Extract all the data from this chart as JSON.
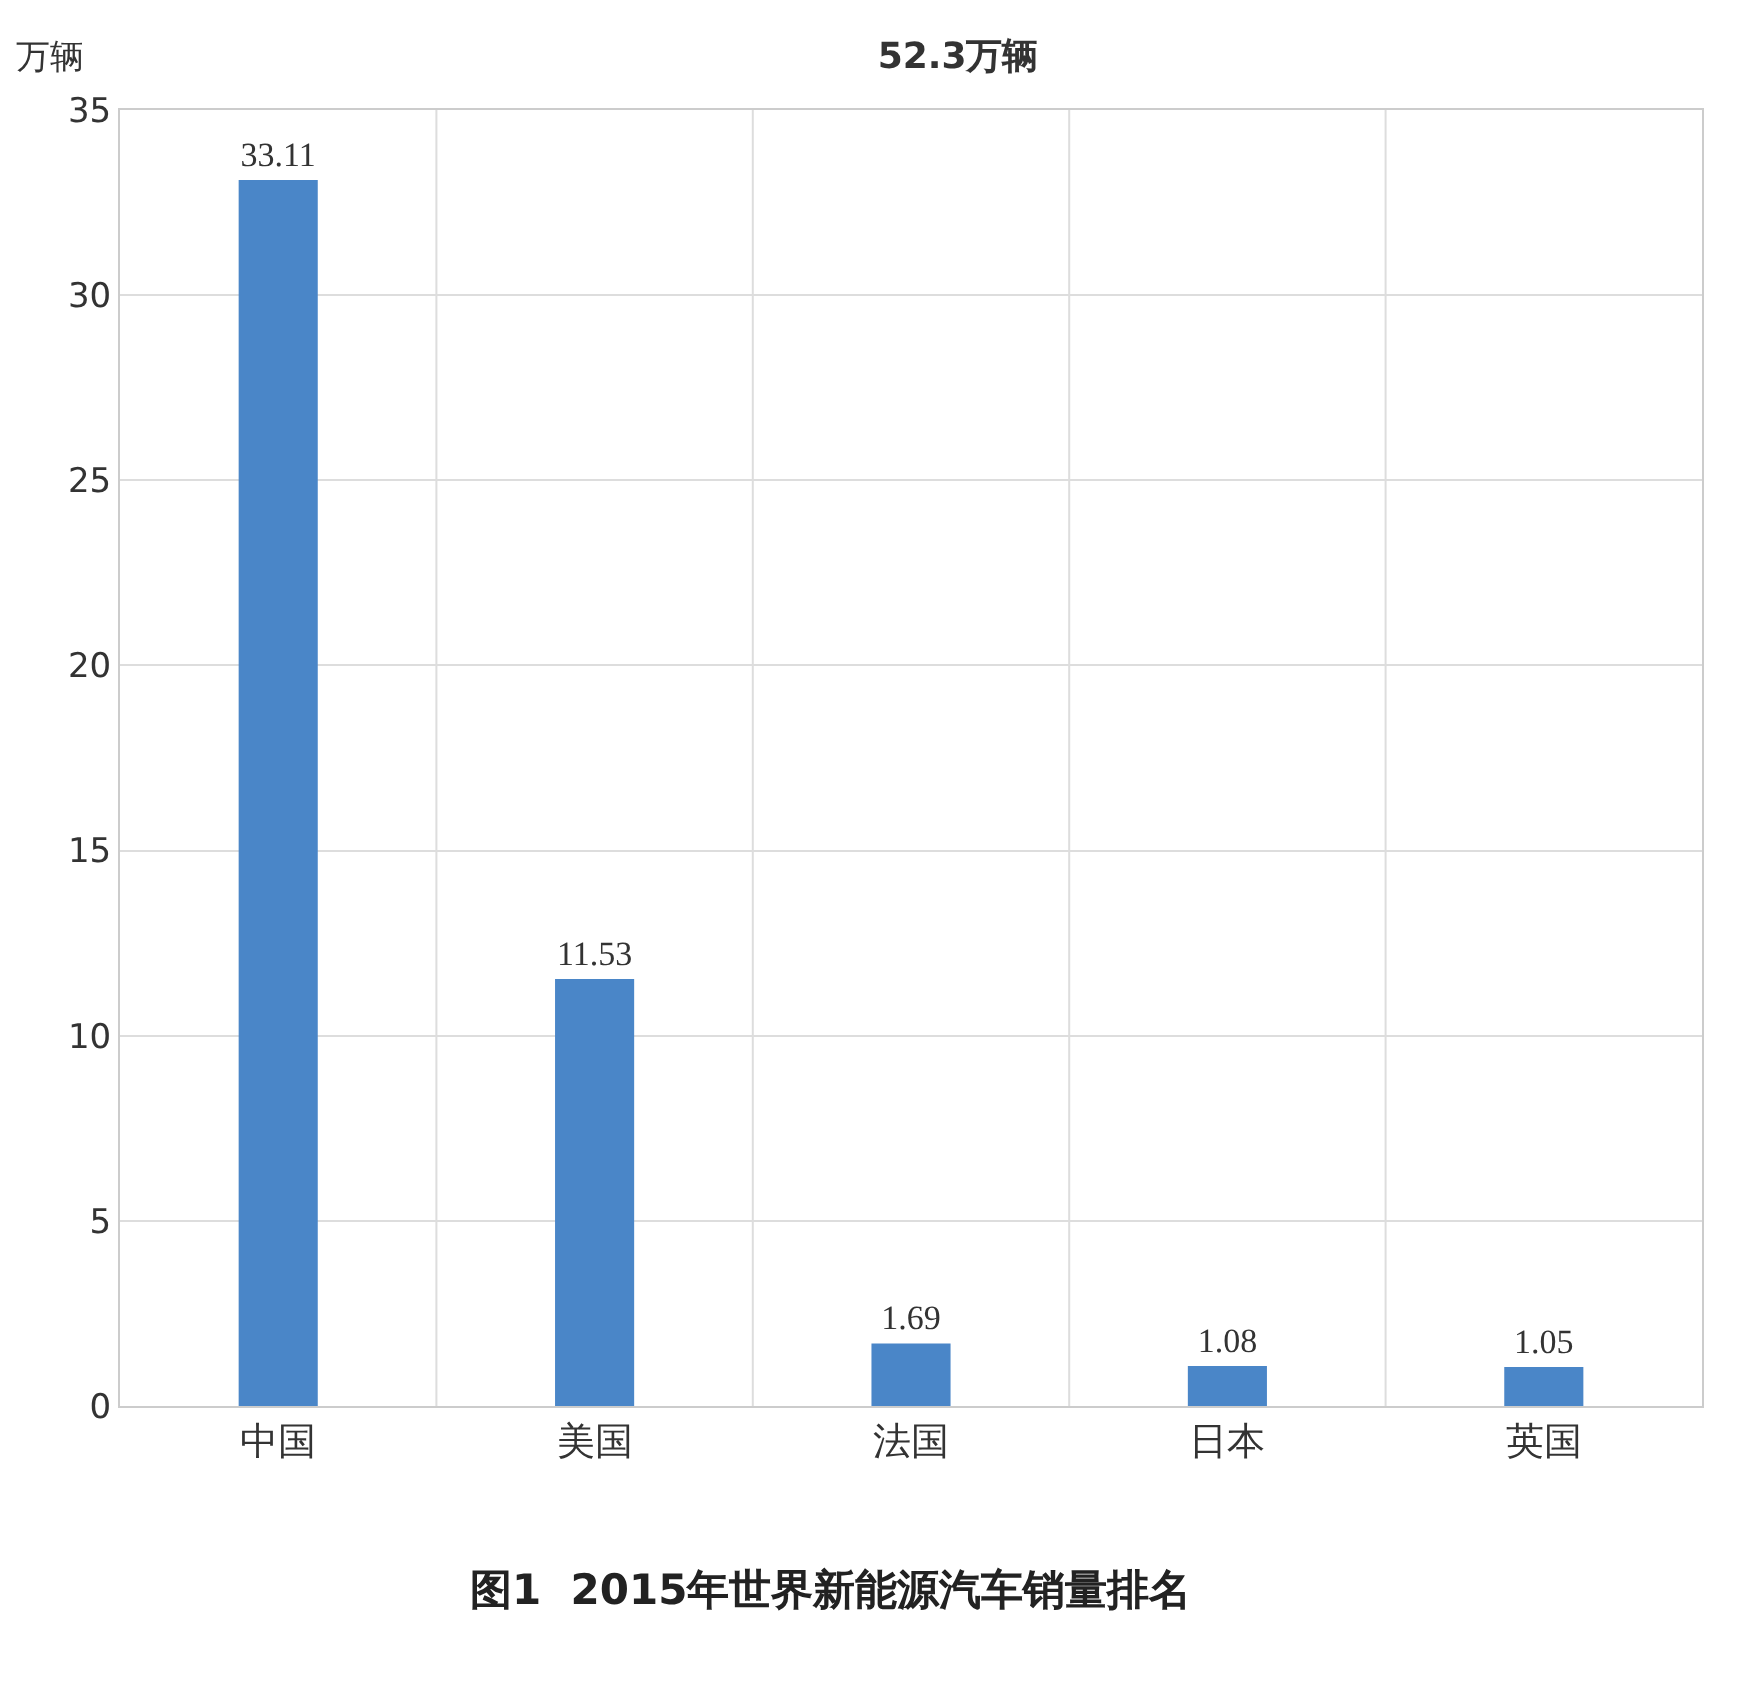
{
  "chart_data": {
    "type": "bar",
    "title": "52.3万辆",
    "ylabel": "万辆",
    "categories": [
      "中国",
      "美国",
      "法国",
      "日本",
      "英国"
    ],
    "values": [
      33.11,
      11.53,
      1.69,
      1.08,
      1.05
    ],
    "color": "#4a86c8",
    "ylim": [
      0,
      35
    ],
    "yticks": [
      0,
      5,
      10,
      15,
      20,
      25,
      30,
      35
    ],
    "grid": true,
    "data_labels": true,
    "annotations": [
      "图1  2015年世界新能源汽车销量排名"
    ]
  }
}
